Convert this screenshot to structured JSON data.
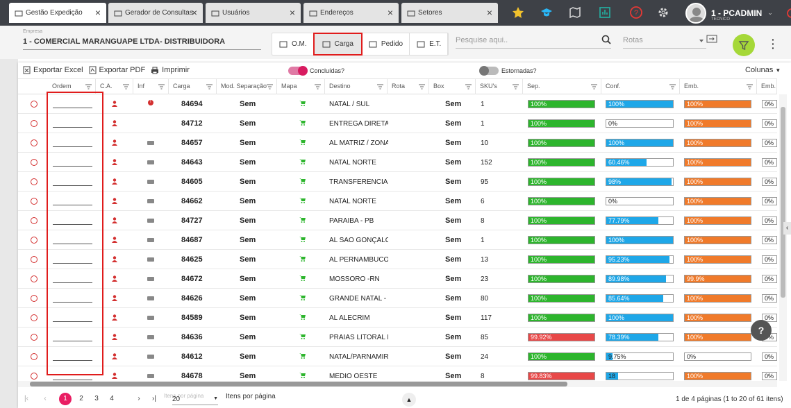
{
  "tabs": [
    {
      "label": "Gestão Expedição",
      "active": true,
      "icon": "truck-icon"
    },
    {
      "label": "Gerador de Consultas",
      "active": false,
      "icon": "chart-icon"
    },
    {
      "label": "Usuários",
      "active": false,
      "icon": "user-icon"
    },
    {
      "label": "Endereços",
      "active": false,
      "icon": "compass-icon"
    },
    {
      "label": "Setores",
      "active": false,
      "icon": "boxes-icon"
    }
  ],
  "topbar": {
    "user_name": "1 - PCADMIN",
    "user_role": "TECNICO",
    "icons": [
      "star-icon",
      "graduation-cap-icon",
      "map-icon",
      "dashboard-icon",
      "help-circle-icon",
      "gear-icon"
    ],
    "colors": {
      "star": "#f2c22d",
      "grad": "#29b6f6",
      "dash": "#26a69a",
      "help": "#e53935",
      "gear": "#444444",
      "power": "#e53935"
    }
  },
  "toolbar": {
    "empresa_label": "Empresa",
    "empresa_value": "1 - COMERCIAL MARANGUAPE LTDA- DISTRIBUIDORA",
    "segments": [
      {
        "label": "O.M.",
        "icon": "dolly-icon",
        "selected": false
      },
      {
        "label": "Carga",
        "icon": "truck-icon",
        "selected": true
      },
      {
        "label": "Pedido",
        "icon": "clipboard-icon",
        "selected": false
      },
      {
        "label": "E.T.",
        "icon": "cart-icon",
        "selected": false
      }
    ],
    "search_placeholder": "Pesquise aqui..",
    "rotas_placeholder": "Rotas",
    "filter_color": "#a5d838"
  },
  "actions": {
    "excel": "Exportar Excel",
    "pdf": "Exportar PDF",
    "print": "Imprimir",
    "concluidas_label": "Concluídas?",
    "concluidas_on": true,
    "estornadas_label": "Estornadas?",
    "estornadas_on": false,
    "colunas": "Colunas"
  },
  "columns": [
    "Ordem",
    "C.A.",
    "Inf",
    "Carga",
    "Mod. Separação",
    "Mapa",
    "Destino",
    "Rota",
    "Box",
    "SKU's",
    "Sep.",
    "Conf.",
    "Emb.",
    "Emb."
  ],
  "rows": [
    {
      "carga": "84694",
      "inf": "alert",
      "mod": "Sem",
      "destino": "NATAL / SUL",
      "box": "Sem",
      "skus": "1",
      "sep": 100,
      "sep_label": "100%",
      "conf": 100,
      "conf_label": "100%",
      "emb": 100,
      "emb_label": "100%",
      "emb2": "0%"
    },
    {
      "carga": "84712",
      "inf": "none",
      "mod": "Sem",
      "destino": "ENTREGA DIRETA-F",
      "box": "Sem",
      "skus": "1",
      "sep": 100,
      "sep_label": "100%",
      "conf": 0,
      "conf_label": "0%",
      "emb": 100,
      "emb_label": "100%",
      "emb2": "0%"
    },
    {
      "carga": "84657",
      "inf": "card",
      "mod": "Sem",
      "destino": "AL MATRIZ / ZONA",
      "box": "Sem",
      "skus": "10",
      "sep": 100,
      "sep_label": "100%",
      "conf": 100,
      "conf_label": "100%",
      "emb": 100,
      "emb_label": "100%",
      "emb2": "0%"
    },
    {
      "carga": "84643",
      "inf": "card",
      "mod": "Sem",
      "destino": "NATAL NORTE",
      "box": "Sem",
      "skus": "152",
      "sep": 100,
      "sep_label": "100%",
      "conf": 60.46,
      "conf_label": "60.46%",
      "emb": 100,
      "emb_label": "100%",
      "emb2": "0%"
    },
    {
      "carga": "84605",
      "inf": "card",
      "mod": "Sem",
      "destino": "TRANSFERENCIA S",
      "box": "Sem",
      "skus": "95",
      "sep": 100,
      "sep_label": "100%",
      "conf": 98,
      "conf_label": "98%",
      "emb": 100,
      "emb_label": "100%",
      "emb2": "0%"
    },
    {
      "carga": "84662",
      "inf": "card",
      "mod": "Sem",
      "destino": "NATAL NORTE",
      "box": "Sem",
      "skus": "6",
      "sep": 100,
      "sep_label": "100%",
      "conf": 0,
      "conf_label": "0%",
      "emb": 100,
      "emb_label": "100%",
      "emb2": "0%"
    },
    {
      "carga": "84727",
      "inf": "card",
      "mod": "Sem",
      "destino": "PARAIBA - PB",
      "box": "Sem",
      "skus": "8",
      "sep": 100,
      "sep_label": "100%",
      "conf": 77.79,
      "conf_label": "77.79%",
      "emb": 100,
      "emb_label": "100%",
      "emb2": "0%"
    },
    {
      "carga": "84687",
      "inf": "card",
      "mod": "Sem",
      "destino": "AL SAO GONÇALO",
      "box": "Sem",
      "skus": "1",
      "sep": 100,
      "sep_label": "100%",
      "conf": 100,
      "conf_label": "100%",
      "emb": 100,
      "emb_label": "100%",
      "emb2": "0%"
    },
    {
      "carga": "84625",
      "inf": "card",
      "mod": "Sem",
      "destino": "AL PERNAMBUCO",
      "box": "Sem",
      "skus": "13",
      "sep": 100,
      "sep_label": "100%",
      "conf": 95.23,
      "conf_label": "95.23%",
      "emb": 100,
      "emb_label": "100%",
      "emb2": "0%"
    },
    {
      "carga": "84672",
      "inf": "card",
      "mod": "Sem",
      "destino": "MOSSORO -RN",
      "box": "Sem",
      "skus": "23",
      "sep": 100,
      "sep_label": "100%",
      "conf": 89.98,
      "conf_label": "89.98%",
      "emb": 99.9,
      "emb_label": "99.9%",
      "emb2": "0%"
    },
    {
      "carga": "84626",
      "inf": "card",
      "mod": "Sem",
      "destino": "GRANDE NATAL - SI",
      "box": "Sem",
      "skus": "80",
      "sep": 100,
      "sep_label": "100%",
      "conf": 85.64,
      "conf_label": "85.64%",
      "emb": 100,
      "emb_label": "100%",
      "emb2": "0%"
    },
    {
      "carga": "84589",
      "inf": "card",
      "mod": "Sem",
      "destino": "AL ALECRIM",
      "box": "Sem",
      "skus": "117",
      "sep": 100,
      "sep_label": "100%",
      "conf": 100,
      "conf_label": "100%",
      "emb": 100,
      "emb_label": "100%",
      "emb2": "0%"
    },
    {
      "carga": "84636",
      "inf": "card",
      "mod": "Sem",
      "destino": "PRAIAS LITORAL NO",
      "box": "Sem",
      "skus": "85",
      "sep": 99.92,
      "sep_label": "99.92%",
      "conf": 78.39,
      "conf_label": "78.39%",
      "emb": 100,
      "emb_label": "100%",
      "emb2": "0%"
    },
    {
      "carga": "84612",
      "inf": "card",
      "mod": "Sem",
      "destino": "NATAL/PARNAMIRI",
      "box": "Sem",
      "skus": "24",
      "sep": 100,
      "sep_label": "100%",
      "conf": 9.75,
      "conf_label": "9.75%",
      "emb": 0,
      "emb_label": "0%",
      "emb2": "0%"
    },
    {
      "carga": "84678",
      "inf": "card",
      "mod": "Sem",
      "destino": "MEDIO OESTE",
      "box": "Sem",
      "skus": "8",
      "sep": 99.83,
      "sep_label": "99.83%",
      "conf": 18,
      "conf_label": "18",
      "emb": 100,
      "emb_label": "100%",
      "emb2": "0%"
    }
  ],
  "colors": {
    "green": "#2db52d",
    "red": "#e84848",
    "blue": "#1ea7e8",
    "orange": "#f07a2a",
    "pink": "#e91e63",
    "highlight": "#e01c1c"
  },
  "pager": {
    "pages": [
      "1",
      "2",
      "3",
      "4"
    ],
    "current": "1",
    "per_page_hint": "Itens por página",
    "per_page": "20",
    "per_page_label": "Itens por página",
    "summary": "1 de 4 páginas (1 to 20 of 61 itens)"
  },
  "help_label": "?"
}
